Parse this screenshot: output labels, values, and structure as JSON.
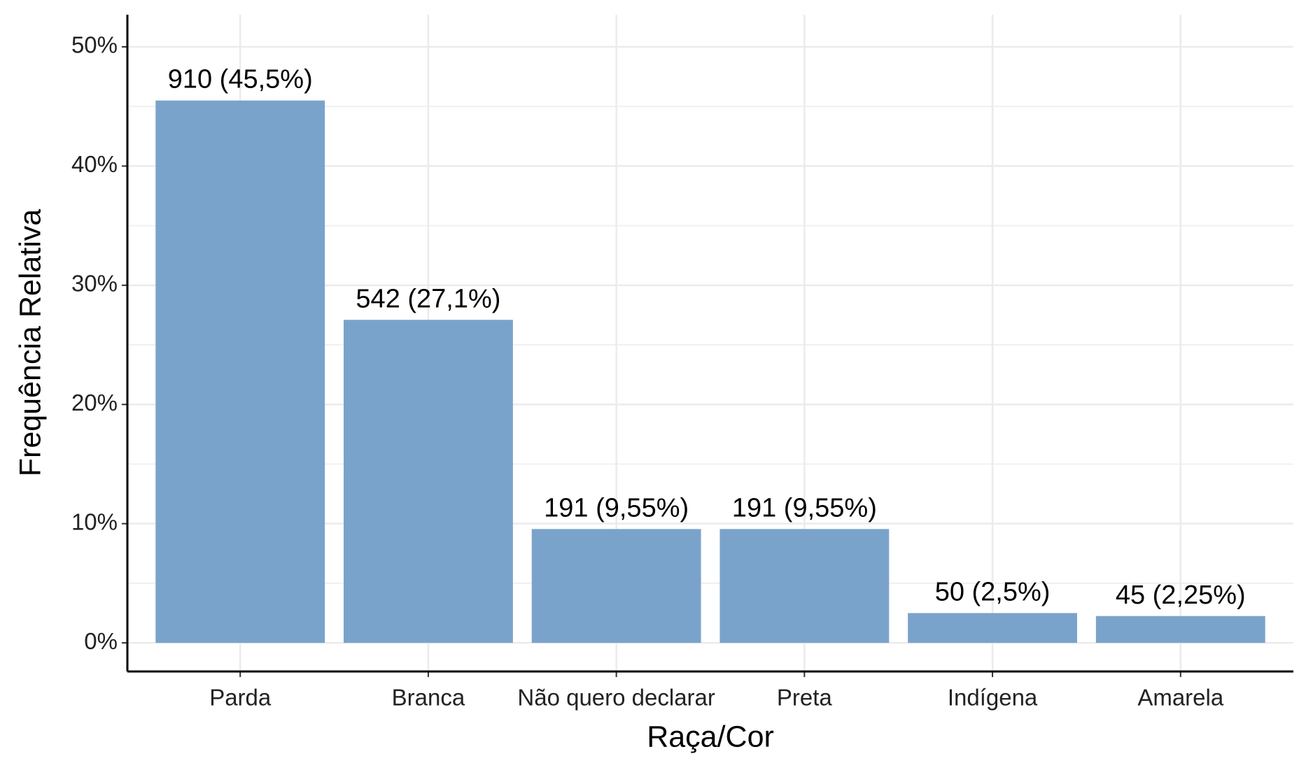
{
  "chart_data": {
    "type": "bar",
    "x_label": "Raça/Cor",
    "y_label": "Frequência Relativa",
    "categories": [
      "Parda",
      "Branca",
      "Não quero declarar",
      "Preta",
      "Indígena",
      "Amarela"
    ],
    "values": [
      45.5,
      27.1,
      9.55,
      9.55,
      2.5,
      2.25
    ],
    "value_labels": [
      "910 (45,5%)",
      "542 (27,1%)",
      "191 (9,55%)",
      "191 (9,55%)",
      "50 (2,5%)",
      "45 (2,25%)"
    ],
    "color": "#7aa3cb",
    "ylim": [
      -2.4,
      52.7
    ],
    "yticks": [
      {
        "value": 0,
        "label": "0%"
      },
      {
        "value": 10,
        "label": "10%"
      },
      {
        "value": 20,
        "label": "20%"
      },
      {
        "value": 30,
        "label": "30%"
      },
      {
        "value": 40,
        "label": "40%"
      },
      {
        "value": 50,
        "label": "50%"
      }
    ],
    "grid": true
  }
}
